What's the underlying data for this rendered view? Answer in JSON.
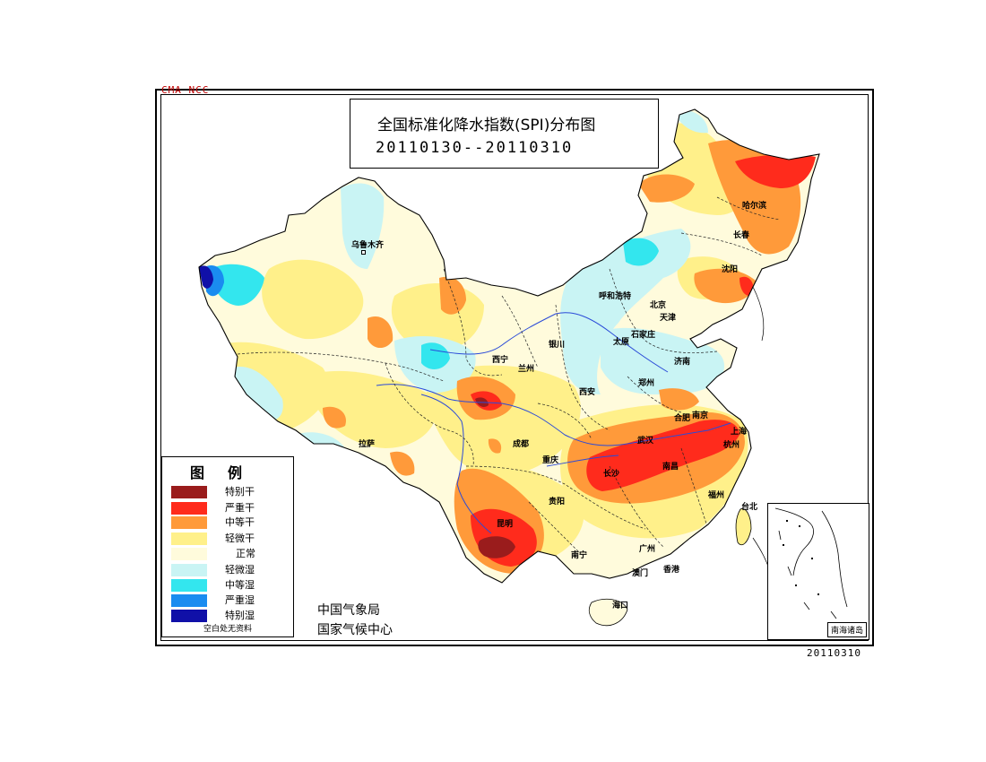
{
  "header": {
    "cma_tag": "CMA NCC",
    "title": "全国标准化降水指数(SPI)分布图",
    "date_range": "20110130--20110310"
  },
  "legend": {
    "title": "图例",
    "items": [
      {
        "label": "特别干",
        "color": "#9a1c1c"
      },
      {
        "label": "严重干",
        "color": "#ff2b1c"
      },
      {
        "label": "中等干",
        "color": "#ff9a3a"
      },
      {
        "label": "轻微干",
        "color": "#fff08a"
      },
      {
        "label": "正常",
        "color": "#fffbdc"
      },
      {
        "label": "轻微湿",
        "color": "#c9f4f4"
      },
      {
        "label": "中等湿",
        "color": "#33e6ee"
      },
      {
        "label": "严重湿",
        "color": "#1a8cf0"
      },
      {
        "label": "特别湿",
        "color": "#1010a8"
      }
    ],
    "note": "空白处无资料"
  },
  "credits": {
    "line1": "中国气象局",
    "line2": "国家气候中心"
  },
  "footer_date": "20110310",
  "inset_label": "南海诸岛",
  "cities": [
    {
      "name": "乌鲁木齐"
    },
    {
      "name": "哈尔滨"
    },
    {
      "name": "长春"
    },
    {
      "name": "沈阳"
    },
    {
      "name": "呼和浩特"
    },
    {
      "name": "北京"
    },
    {
      "name": "天津"
    },
    {
      "name": "太原"
    },
    {
      "name": "石家庄"
    },
    {
      "name": "银川"
    },
    {
      "name": "济南"
    },
    {
      "name": "西宁"
    },
    {
      "name": "兰州"
    },
    {
      "name": "郑州"
    },
    {
      "name": "西安"
    },
    {
      "name": "合肥"
    },
    {
      "name": "南京"
    },
    {
      "name": "上海"
    },
    {
      "name": "拉萨"
    },
    {
      "name": "成都"
    },
    {
      "name": "武汉"
    },
    {
      "name": "杭州"
    },
    {
      "name": "重庆"
    },
    {
      "name": "长沙"
    },
    {
      "name": "南昌"
    },
    {
      "name": "福州"
    },
    {
      "name": "贵阳"
    },
    {
      "name": "台北"
    },
    {
      "name": "昆明"
    },
    {
      "name": "南宁"
    },
    {
      "name": "广州"
    },
    {
      "name": "香港"
    },
    {
      "name": "澳门"
    },
    {
      "name": "海口"
    }
  ]
}
